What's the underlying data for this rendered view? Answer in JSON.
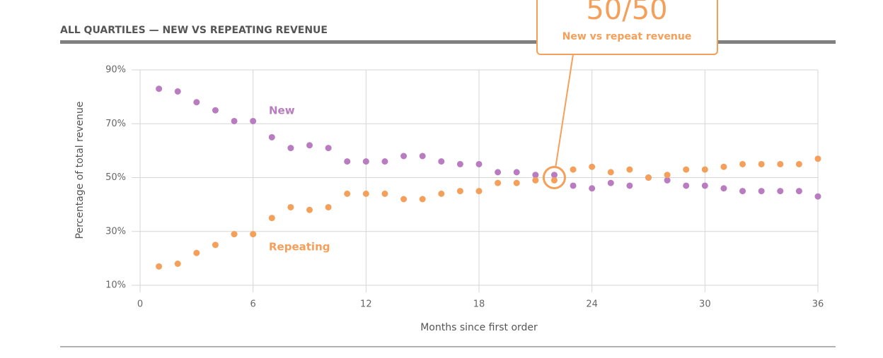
{
  "chart_data": {
    "type": "scatter",
    "title": "ALL QUARTILES — NEW VS REPEATING REVENUE",
    "xlabel": "Months since first order",
    "ylabel": "Percentage of total revenue",
    "x": [
      1,
      2,
      3,
      4,
      5,
      6,
      7,
      8,
      9,
      10,
      11,
      12,
      13,
      14,
      15,
      16,
      17,
      18,
      19,
      20,
      21,
      22,
      23,
      24,
      25,
      26,
      27,
      28,
      29,
      30,
      31,
      32,
      33,
      34,
      35,
      36
    ],
    "series": [
      {
        "name": "New",
        "color": "#b97cc0",
        "values": [
          83,
          82,
          78,
          75,
          71,
          71,
          65,
          61,
          62,
          61,
          56,
          56,
          56,
          58,
          58,
          56,
          55,
          55,
          52,
          52,
          51,
          51,
          47,
          46,
          48,
          47,
          50,
          49,
          47,
          47,
          46,
          45,
          45,
          45,
          45,
          43
        ]
      },
      {
        "name": "Repeating",
        "color": "#f5a05a",
        "values": [
          17,
          18,
          22,
          25,
          29,
          29,
          35,
          39,
          38,
          39,
          44,
          44,
          44,
          42,
          42,
          44,
          45,
          45,
          48,
          48,
          49,
          49,
          53,
          54,
          52,
          53,
          50,
          51,
          53,
          53,
          54,
          55,
          55,
          55,
          55,
          57
        ]
      }
    ],
    "xlim": [
      0,
      36
    ],
    "xticks": [
      0,
      6,
      12,
      18,
      24,
      30,
      36
    ],
    "ylim": [
      10,
      90
    ],
    "yticks": [
      {
        "value": 10,
        "label": "10%"
      },
      {
        "value": 30,
        "label": "30%"
      },
      {
        "value": 50,
        "label": "50%"
      },
      {
        "value": 70,
        "label": "70%"
      },
      {
        "value": 90,
        "label": "90%"
      }
    ],
    "grid": true,
    "annotation": {
      "title": "50/50",
      "text": "New vs repeat revenue",
      "x": 22,
      "y": 50,
      "color": "#f5a05a"
    }
  }
}
